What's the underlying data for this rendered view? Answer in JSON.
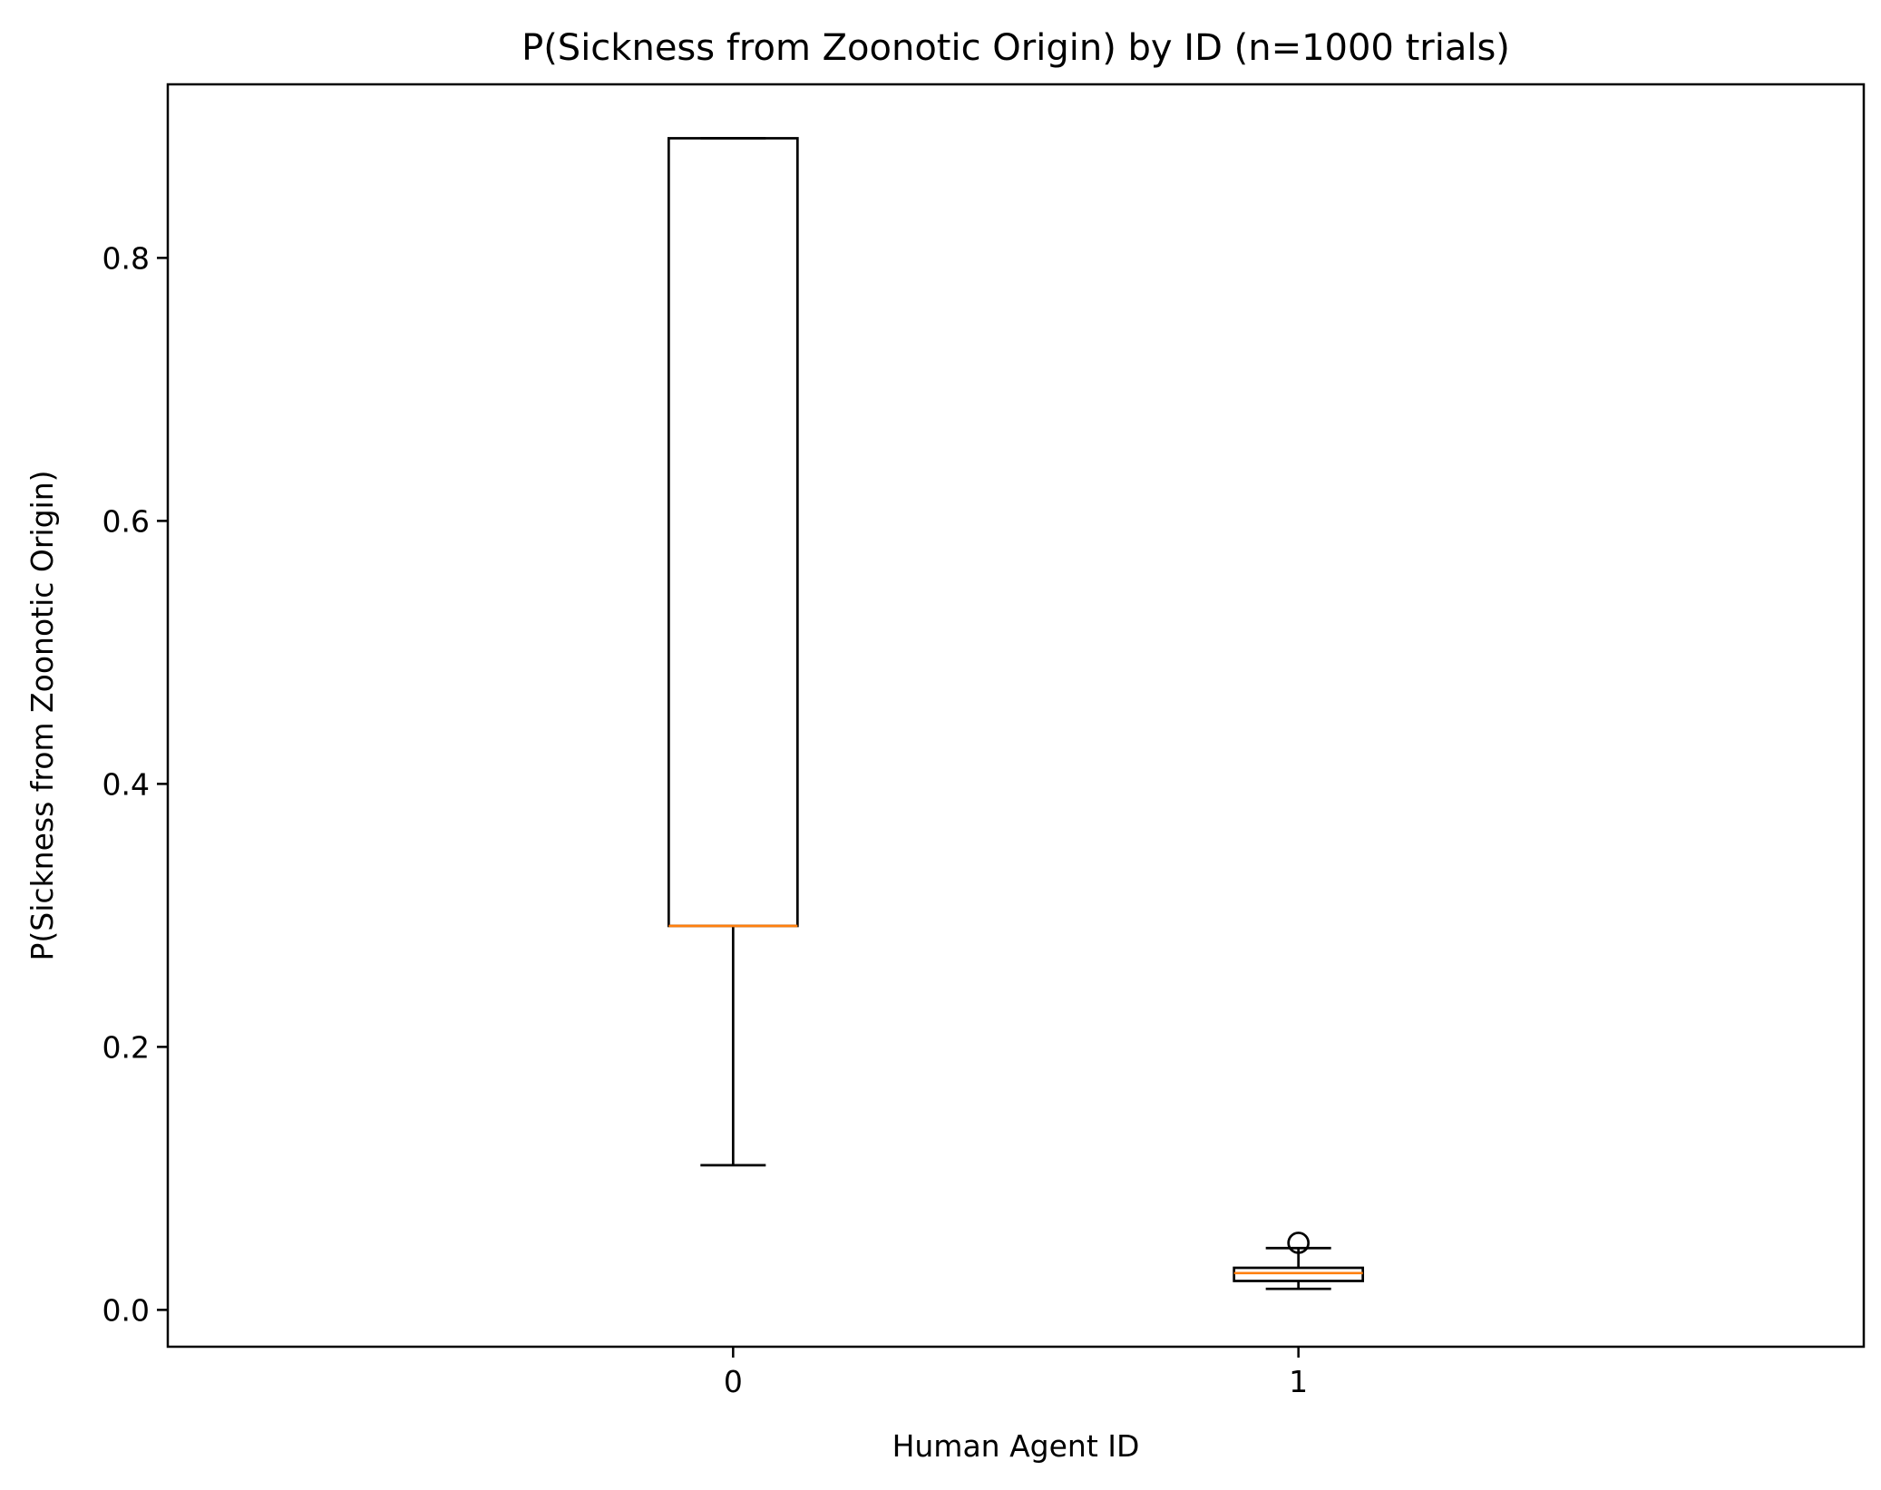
{
  "chart_data": {
    "type": "box",
    "title": "P(Sickness from Zoonotic Origin) by ID (n=1000 trials)",
    "xlabel": "Human Agent ID",
    "ylabel": "P(Sickness from Zoonotic Origin)",
    "ylim": [
      -0.028,
      0.932
    ],
    "yticks": [
      0.0,
      0.2,
      0.4,
      0.6,
      0.8
    ],
    "ytick_labels": [
      "0.0",
      "0.2",
      "0.4",
      "0.6",
      "0.8"
    ],
    "categories": [
      "0",
      "1"
    ],
    "grid": false,
    "boxes": [
      {
        "category": "0",
        "whisker_low": 0.11,
        "q1": 0.292,
        "median": 0.292,
        "q3": 0.891,
        "whisker_high": 0.891,
        "outliers": []
      },
      {
        "category": "1",
        "whisker_low": 0.016,
        "q1": 0.022,
        "median": 0.028,
        "q3": 0.032,
        "whisker_high": 0.047,
        "outliers": [
          0.051
        ]
      }
    ],
    "colors": {
      "box": "#000000",
      "median": "#ff7f0e"
    }
  }
}
